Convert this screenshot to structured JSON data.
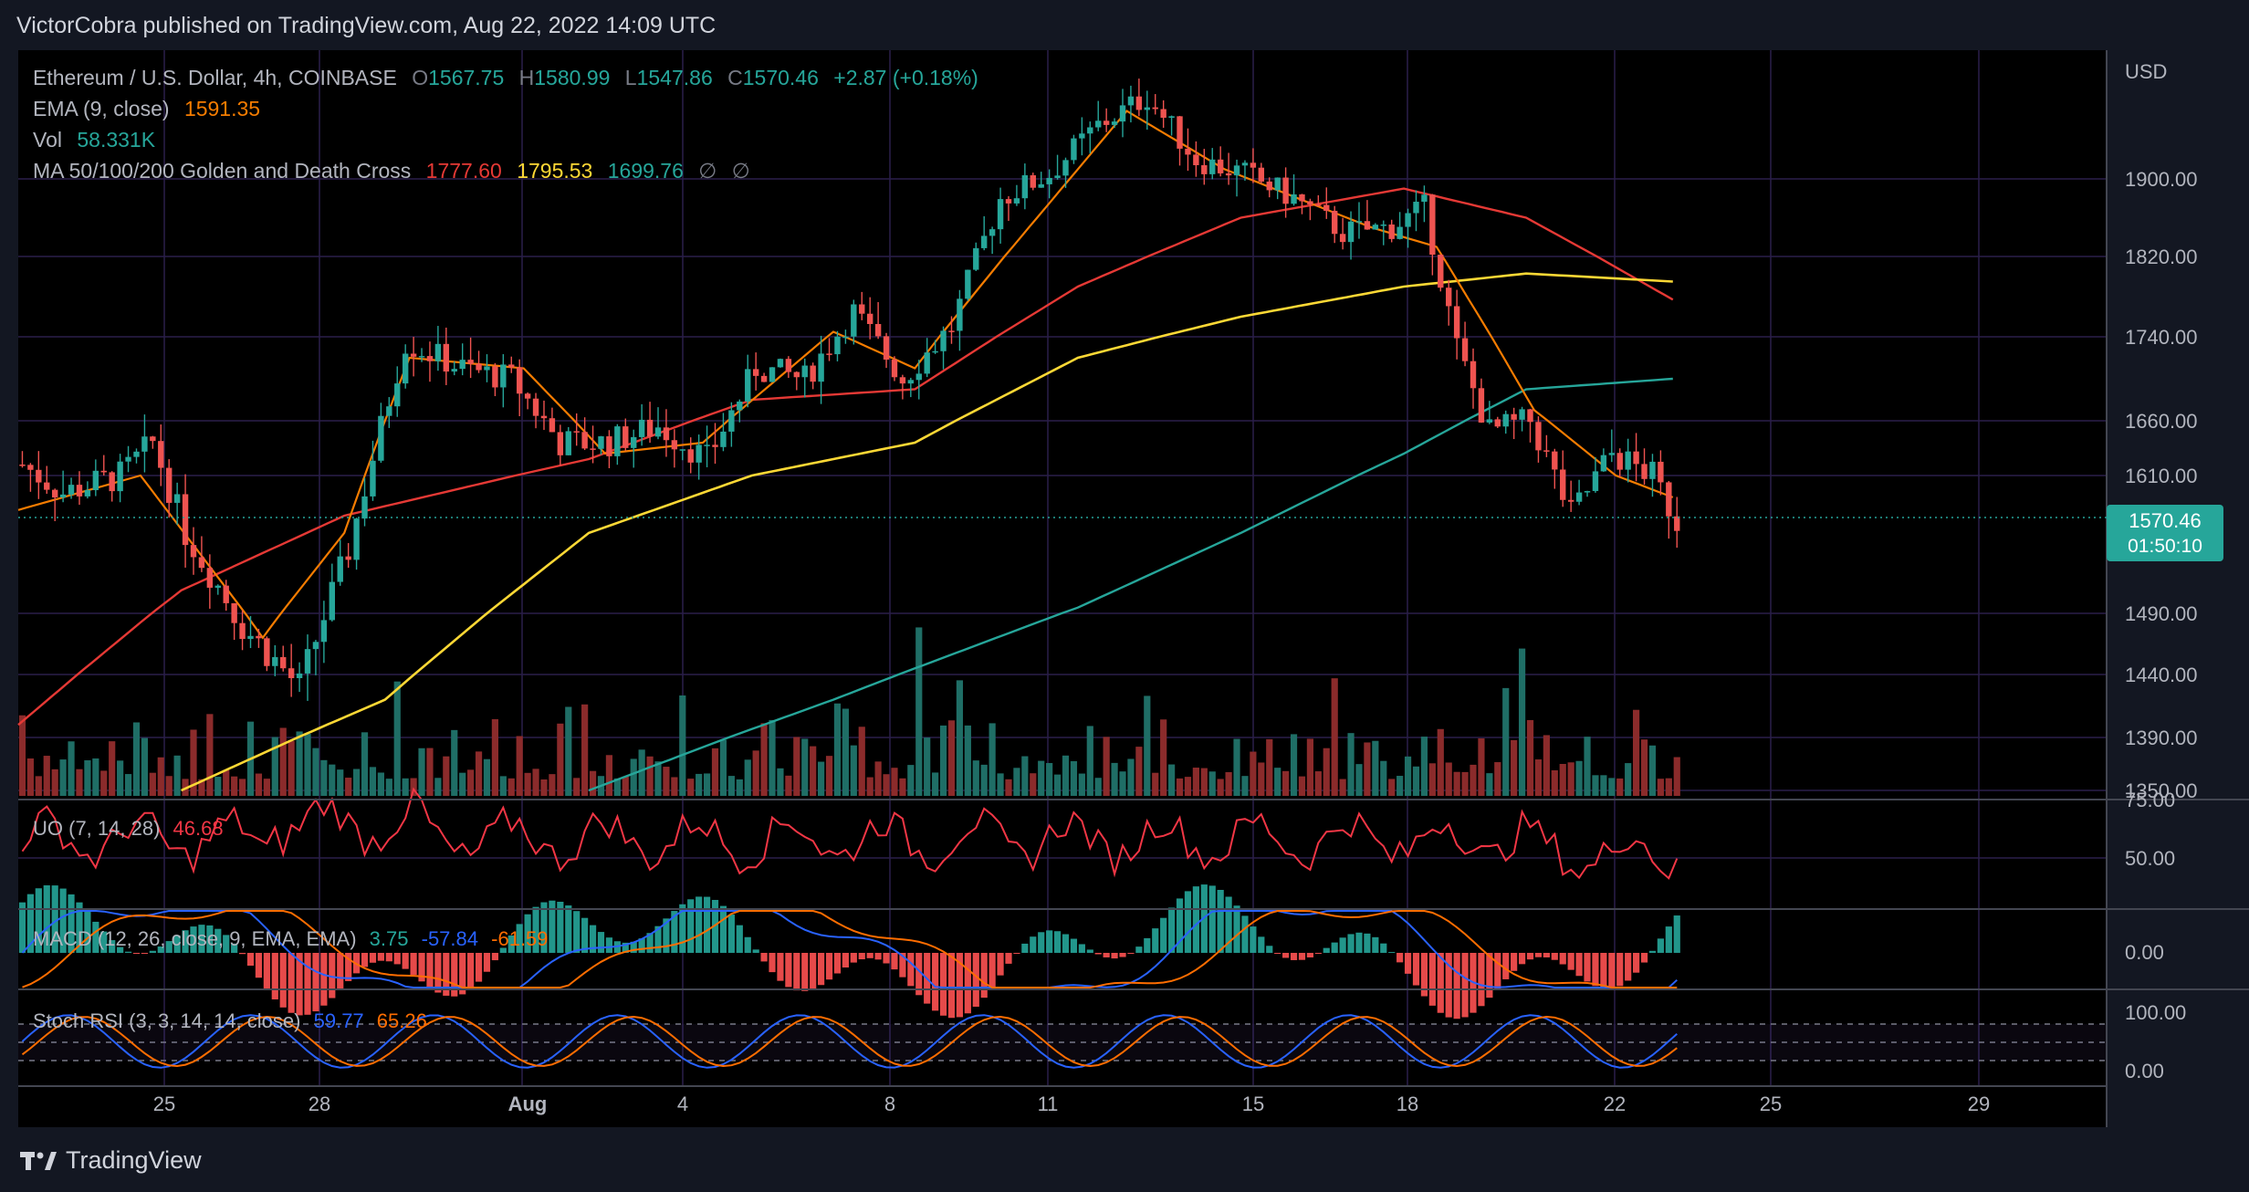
{
  "header": {
    "publisher": "VictorCobra published on TradingView.com, Aug 22, 2022 14:09 UTC"
  },
  "legend": {
    "symbol": "Ethereum / U.S. Dollar, 4h, COINBASE",
    "o_label": "O",
    "o": "1567.75",
    "h_label": "H",
    "h": "1580.99",
    "l_label": "L",
    "l": "1547.86",
    "c_label": "C",
    "c": "1570.46",
    "change": "+2.87 (+0.18%)",
    "ema_label": "EMA (9, close)",
    "ema_value": "1591.35",
    "vol_label": "Vol",
    "vol_value": "58.331K",
    "ma_label": "MA 50/100/200 Golden and Death Cross",
    "ma50": "1777.60",
    "ma100": "1795.53",
    "ma200": "1699.76",
    "ma_extra1": "∅",
    "ma_extra2": "∅"
  },
  "panes": {
    "uo": {
      "label": "UO (7, 14, 28)",
      "value": "46.68"
    },
    "macd": {
      "label": "MACD (12, 26, close, 9, EMA, EMA)",
      "hist": "3.75",
      "macd": "-57.84",
      "signal": "-61.59"
    },
    "stoch": {
      "label": "Stoch RSI (3, 3, 14, 14, close)",
      "k": "59.77",
      "d": "65.26"
    }
  },
  "price_axis": {
    "currency": "USD",
    "last_price": "1570.46",
    "countdown": "01:50:10"
  },
  "footer": {
    "brand": "TradingView"
  },
  "colors": {
    "bg": "#131722",
    "up": "#26a69a",
    "down": "#ef5350",
    "ema": "#f57c00",
    "ma50": "#e53935",
    "ma100": "#fdd835",
    "ma200": "#26a69a",
    "uo": "#f23645",
    "macd": "#2962ff",
    "signal": "#ff6d00",
    "grid": "#2a1f4a"
  },
  "chart_data": {
    "type": "candlestick",
    "title": "Ethereum / U.S. Dollar, 4h, COINBASE",
    "x_tick_labels": [
      "25",
      "28",
      "Aug",
      "4",
      "8",
      "11",
      "15",
      "18",
      "22",
      "25",
      "29"
    ],
    "price_tick_labels": [
      "1900.00",
      "1820.00",
      "1740.00",
      "1660.00",
      "1610.00",
      "1490.00",
      "1440.00",
      "1390.00",
      "1350.00"
    ],
    "uo_tick_labels": [
      "75.00",
      "50.00"
    ],
    "macd_tick_labels": [
      "0.00"
    ],
    "stoch_tick_labels": [
      "100.00",
      "0.00"
    ],
    "price_keypoints": [
      {
        "i": 0,
        "p": 1620
      },
      {
        "i": 5,
        "p": 1595
      },
      {
        "i": 12,
        "p": 1610
      },
      {
        "i": 16,
        "p": 1640
      },
      {
        "i": 20,
        "p": 1560
      },
      {
        "i": 27,
        "p": 1480
      },
      {
        "i": 34,
        "p": 1430
      },
      {
        "i": 40,
        "p": 1545
      },
      {
        "i": 47,
        "p": 1735
      },
      {
        "i": 54,
        "p": 1710
      },
      {
        "i": 60,
        "p": 1700
      },
      {
        "i": 66,
        "p": 1640
      },
      {
        "i": 72,
        "p": 1640
      },
      {
        "i": 78,
        "p": 1655
      },
      {
        "i": 84,
        "p": 1625
      },
      {
        "i": 90,
        "p": 1710
      },
      {
        "i": 96,
        "p": 1700
      },
      {
        "i": 102,
        "p": 1765
      },
      {
        "i": 108,
        "p": 1700
      },
      {
        "i": 114,
        "p": 1750
      },
      {
        "i": 120,
        "p": 1880
      },
      {
        "i": 126,
        "p": 1905
      },
      {
        "i": 132,
        "p": 1955
      },
      {
        "i": 138,
        "p": 1985
      },
      {
        "i": 144,
        "p": 1920
      },
      {
        "i": 150,
        "p": 1905
      },
      {
        "i": 156,
        "p": 1880
      },
      {
        "i": 162,
        "p": 1845
      },
      {
        "i": 168,
        "p": 1850
      },
      {
        "i": 172,
        "p": 1870
      },
      {
        "i": 176,
        "p": 1730
      },
      {
        "i": 180,
        "p": 1650
      },
      {
        "i": 185,
        "p": 1660
      },
      {
        "i": 190,
        "p": 1575
      },
      {
        "i": 195,
        "p": 1630
      },
      {
        "i": 200,
        "p": 1610
      },
      {
        "i": 203,
        "p": 1570
      }
    ],
    "ema_keypoints": [
      {
        "i": 0,
        "p": 1580
      },
      {
        "i": 15,
        "p": 1610
      },
      {
        "i": 30,
        "p": 1470
      },
      {
        "i": 40,
        "p": 1560
      },
      {
        "i": 48,
        "p": 1720
      },
      {
        "i": 62,
        "p": 1710
      },
      {
        "i": 72,
        "p": 1630
      },
      {
        "i": 84,
        "p": 1640
      },
      {
        "i": 100,
        "p": 1745
      },
      {
        "i": 110,
        "p": 1710
      },
      {
        "i": 124,
        "p": 1850
      },
      {
        "i": 136,
        "p": 1970
      },
      {
        "i": 148,
        "p": 1910
      },
      {
        "i": 166,
        "p": 1850
      },
      {
        "i": 174,
        "p": 1830
      },
      {
        "i": 186,
        "p": 1670
      },
      {
        "i": 196,
        "p": 1610
      },
      {
        "i": 203,
        "p": 1591
      }
    ],
    "ma50_keypoints": [
      {
        "i": 0,
        "p": 1400
      },
      {
        "i": 20,
        "p": 1510
      },
      {
        "i": 40,
        "p": 1575
      },
      {
        "i": 70,
        "p": 1625
      },
      {
        "i": 90,
        "p": 1680
      },
      {
        "i": 110,
        "p": 1690
      },
      {
        "i": 130,
        "p": 1790
      },
      {
        "i": 150,
        "p": 1860
      },
      {
        "i": 170,
        "p": 1890
      },
      {
        "i": 185,
        "p": 1860
      },
      {
        "i": 203,
        "p": 1777
      }
    ],
    "ma100_keypoints": [
      {
        "i": 20,
        "p": 1350
      },
      {
        "i": 45,
        "p": 1420
      },
      {
        "i": 70,
        "p": 1560
      },
      {
        "i": 90,
        "p": 1610
      },
      {
        "i": 110,
        "p": 1640
      },
      {
        "i": 130,
        "p": 1720
      },
      {
        "i": 150,
        "p": 1760
      },
      {
        "i": 170,
        "p": 1790
      },
      {
        "i": 185,
        "p": 1803
      },
      {
        "i": 203,
        "p": 1795
      }
    ],
    "ma200_keypoints": [
      {
        "i": 70,
        "p": 1350
      },
      {
        "i": 100,
        "p": 1420
      },
      {
        "i": 130,
        "p": 1495
      },
      {
        "i": 150,
        "p": 1560
      },
      {
        "i": 170,
        "p": 1630
      },
      {
        "i": 185,
        "p": 1690
      },
      {
        "i": 203,
        "p": 1700
      }
    ],
    "price_range": [
      1345,
      2015
    ],
    "series": [
      {
        "name": "EMA (9, close)",
        "last": 1591.35
      },
      {
        "name": "MA 50",
        "last": 1777.6
      },
      {
        "name": "MA 100",
        "last": 1795.53
      },
      {
        "name": "MA 200",
        "last": 1699.76
      }
    ]
  }
}
